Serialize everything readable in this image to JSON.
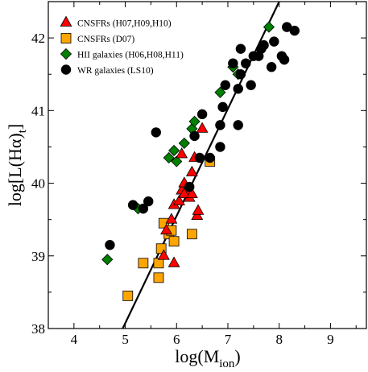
{
  "chart_data": {
    "type": "scatter",
    "xlabel": "log(M_ion)",
    "ylabel": "log[L(Hα)_t]",
    "xlim": [
      3.5,
      9.7
    ],
    "ylim": [
      38,
      42.5
    ],
    "xticks": [
      4,
      5,
      6,
      7,
      8,
      9
    ],
    "yticks": [
      38,
      39,
      40,
      41,
      42
    ],
    "grid": false,
    "legend_position": "top-left",
    "series": [
      {
        "name": "CNSFRs (H07,H09,H10)",
        "marker": "triangle",
        "color": "#ff0000",
        "points": [
          [
            5.75,
            39.0
          ],
          [
            5.95,
            38.9
          ],
          [
            5.8,
            39.35
          ],
          [
            5.9,
            39.5
          ],
          [
            5.95,
            39.7
          ],
          [
            6.05,
            39.75
          ],
          [
            6.1,
            39.9
          ],
          [
            6.15,
            40.0
          ],
          [
            6.25,
            39.8
          ],
          [
            6.2,
            39.9
          ],
          [
            6.3,
            40.15
          ],
          [
            6.35,
            40.35
          ],
          [
            6.4,
            39.55
          ],
          [
            6.42,
            39.62
          ],
          [
            6.1,
            40.4
          ],
          [
            6.5,
            40.75
          ],
          [
            6.15,
            39.85
          ],
          [
            6.3,
            39.85
          ]
        ]
      },
      {
        "name": "CNSFRs (D07)",
        "marker": "square",
        "color": "#ffa500",
        "points": [
          [
            5.05,
            38.45
          ],
          [
            5.35,
            38.9
          ],
          [
            5.65,
            38.7
          ],
          [
            5.65,
            38.9
          ],
          [
            5.7,
            39.1
          ],
          [
            5.75,
            39.45
          ],
          [
            5.85,
            39.3
          ],
          [
            5.9,
            39.35
          ],
          [
            5.95,
            39.2
          ],
          [
            6.3,
            39.3
          ],
          [
            6.65,
            40.3
          ]
        ]
      },
      {
        "name": "HII galaxies (H06,H08,H11)",
        "marker": "diamond",
        "color": "#008000",
        "points": [
          [
            4.65,
            38.95
          ],
          [
            5.25,
            39.65
          ],
          [
            5.85,
            40.35
          ],
          [
            5.95,
            40.45
          ],
          [
            6.0,
            40.3
          ],
          [
            6.15,
            40.55
          ],
          [
            6.3,
            40.75
          ],
          [
            6.35,
            40.85
          ],
          [
            6.85,
            41.25
          ],
          [
            7.1,
            41.6
          ],
          [
            7.2,
            41.5
          ],
          [
            7.8,
            42.15
          ]
        ]
      },
      {
        "name": "WR galaxies (LS10)",
        "marker": "circle",
        "color": "#000000",
        "points": [
          [
            4.7,
            39.15
          ],
          [
            5.15,
            39.7
          ],
          [
            5.35,
            39.65
          ],
          [
            5.45,
            39.75
          ],
          [
            5.6,
            40.7
          ],
          [
            6.25,
            39.95
          ],
          [
            6.35,
            40.65
          ],
          [
            6.45,
            40.35
          ],
          [
            6.5,
            40.95
          ],
          [
            6.65,
            40.35
          ],
          [
            6.85,
            40.8
          ],
          [
            6.85,
            40.5
          ],
          [
            6.9,
            41.05
          ],
          [
            6.95,
            41.35
          ],
          [
            7.1,
            41.65
          ],
          [
            7.2,
            41.3
          ],
          [
            7.2,
            40.8
          ],
          [
            7.25,
            41.5
          ],
          [
            7.25,
            41.85
          ],
          [
            7.35,
            41.65
          ],
          [
            7.45,
            41.35
          ],
          [
            7.5,
            41.75
          ],
          [
            7.6,
            41.75
          ],
          [
            7.65,
            41.85
          ],
          [
            7.7,
            41.9
          ],
          [
            7.85,
            41.6
          ],
          [
            7.9,
            41.95
          ],
          [
            8.05,
            41.75
          ],
          [
            8.1,
            41.7
          ],
          [
            8.15,
            42.15
          ],
          [
            8.3,
            42.1
          ]
        ]
      }
    ],
    "fit_line": {
      "x": [
        4.95,
        8.0
      ],
      "y": [
        38.0,
        42.5
      ],
      "color": "#000000"
    }
  }
}
